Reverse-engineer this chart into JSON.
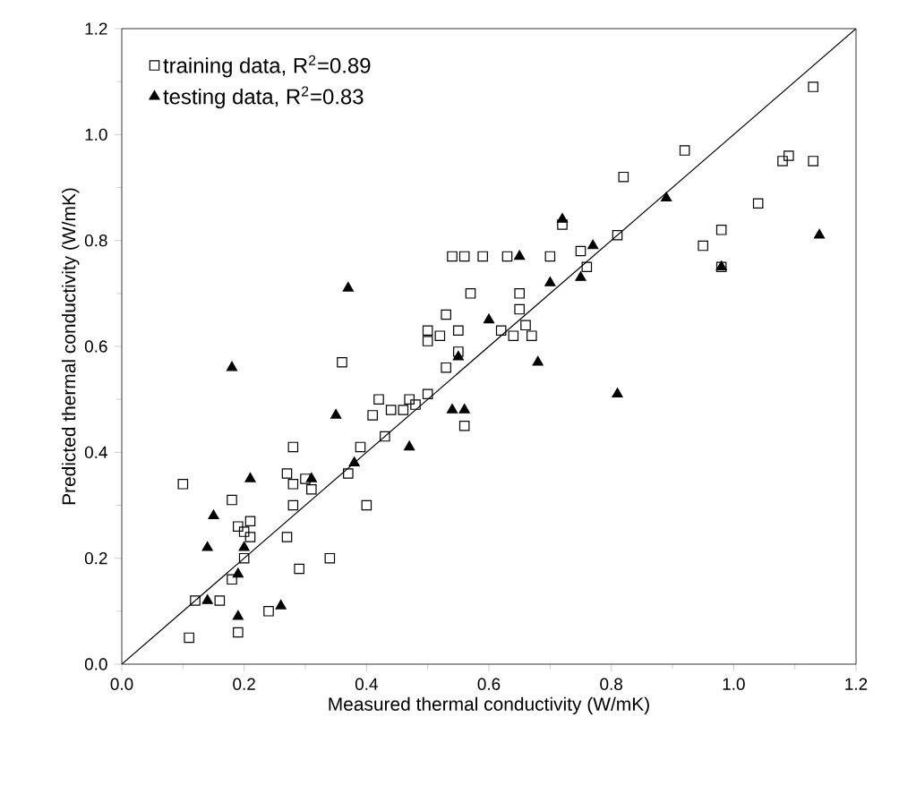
{
  "chart_data": {
    "type": "scatter",
    "xlabel": "Measured thermal conductivity (W/mK)",
    "ylabel": "Predicted thermal conductivity (W/mK)",
    "xlim": [
      0,
      1.2
    ],
    "ylim": [
      0,
      1.2
    ],
    "xticks": [
      {
        "value": 0,
        "label": "0.0"
      },
      {
        "value": 0.2,
        "label": "0.2"
      },
      {
        "value": 0.4,
        "label": "0.4"
      },
      {
        "value": 0.6,
        "label": "0.6"
      },
      {
        "value": 0.8,
        "label": "0.8"
      },
      {
        "value": 1.0,
        "label": "1.0"
      },
      {
        "value": 1.2,
        "label": "1.2"
      }
    ],
    "yticks": [
      {
        "value": 0,
        "label": "0.0"
      },
      {
        "value": 0.2,
        "label": "0.2"
      },
      {
        "value": 0.4,
        "label": "0.4"
      },
      {
        "value": 0.6,
        "label": "0.6"
      },
      {
        "value": 0.8,
        "label": "0.8"
      },
      {
        "value": 1.0,
        "label": "1.0"
      },
      {
        "value": 1.2,
        "label": "1.2"
      }
    ],
    "grid": false,
    "legend": "top left",
    "series": [
      {
        "name": "training data, R$^{2}$=0.89",
        "color": "#000000",
        "marker": "square",
        "x": [
          0.1,
          0.11,
          0.12,
          0.16,
          0.18,
          0.18,
          0.19,
          0.19,
          0.2,
          0.2,
          0.21,
          0.21,
          0.24,
          0.27,
          0.27,
          0.28,
          0.28,
          0.28,
          0.29,
          0.31,
          0.3,
          0.34,
          0.36,
          0.37,
          0.39,
          0.4,
          0.41,
          0.42,
          0.43,
          0.44,
          0.46,
          0.47,
          0.48,
          0.5,
          0.5,
          0.5,
          0.52,
          0.53,
          0.53,
          0.54,
          0.55,
          0.55,
          0.56,
          0.56,
          0.57,
          0.59,
          0.62,
          0.63,
          0.64,
          0.65,
          0.65,
          0.66,
          0.67,
          0.7,
          0.72,
          0.75,
          0.76,
          0.81,
          0.82,
          0.92,
          0.95,
          0.98,
          0.98,
          1.04,
          1.08,
          1.09,
          1.13,
          1.13
        ],
        "values": [
          0.34,
          0.05,
          0.12,
          0.12,
          0.16,
          0.31,
          0.26,
          0.06,
          0.25,
          0.2,
          0.24,
          0.27,
          0.1,
          0.24,
          0.36,
          0.3,
          0.34,
          0.41,
          0.18,
          0.33,
          0.35,
          0.2,
          0.57,
          0.36,
          0.41,
          0.3,
          0.47,
          0.5,
          0.43,
          0.48,
          0.48,
          0.5,
          0.49,
          0.51,
          0.61,
          0.63,
          0.62,
          0.66,
          0.56,
          0.77,
          0.59,
          0.63,
          0.45,
          0.77,
          0.7,
          0.77,
          0.63,
          0.77,
          0.62,
          0.67,
          0.7,
          0.64,
          0.62,
          0.77,
          0.83,
          0.78,
          0.75,
          0.81,
          0.92,
          0.97,
          0.79,
          0.75,
          0.82,
          0.87,
          0.95,
          0.96,
          0.95,
          1.09
        ]
      },
      {
        "name": "testing data, R$^{2}$=0.83",
        "color": "#000000",
        "marker": "triangle",
        "x": [
          0.14,
          0.14,
          0.15,
          0.18,
          0.19,
          0.19,
          0.2,
          0.21,
          0.26,
          0.31,
          0.35,
          0.37,
          0.38,
          0.47,
          0.54,
          0.55,
          0.56,
          0.6,
          0.65,
          0.68,
          0.7,
          0.72,
          0.75,
          0.77,
          0.81,
          0.89,
          0.98,
          1.14
        ],
        "values": [
          0.12,
          0.22,
          0.28,
          0.56,
          0.17,
          0.09,
          0.22,
          0.35,
          0.11,
          0.35,
          0.47,
          0.71,
          0.38,
          0.41,
          0.48,
          0.58,
          0.48,
          0.65,
          0.77,
          0.57,
          0.72,
          0.84,
          0.73,
          0.79,
          0.51,
          0.88,
          0.75,
          0.81
        ]
      },
      {
        "type": "line",
        "color": "#000000",
        "marker": "none",
        "x": [
          0,
          1.2
        ],
        "values": [
          0,
          1.2
        ]
      }
    ]
  }
}
